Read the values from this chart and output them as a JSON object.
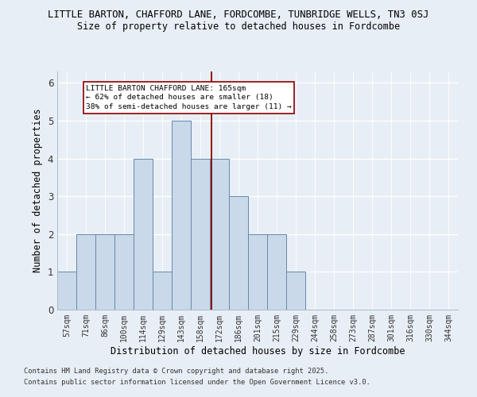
{
  "title": "LITTLE BARTON, CHAFFORD LANE, FORDCOMBE, TUNBRIDGE WELLS, TN3 0SJ",
  "subtitle": "Size of property relative to detached houses in Fordcombe",
  "xlabel": "Distribution of detached houses by size in Fordcombe",
  "ylabel": "Number of detached properties",
  "categories": [
    "57sqm",
    "71sqm",
    "86sqm",
    "100sqm",
    "114sqm",
    "129sqm",
    "143sqm",
    "158sqm",
    "172sqm",
    "186sqm",
    "201sqm",
    "215sqm",
    "229sqm",
    "244sqm",
    "258sqm",
    "273sqm",
    "287sqm",
    "301sqm",
    "316sqm",
    "330sqm",
    "344sqm"
  ],
  "values": [
    1,
    2,
    2,
    2,
    4,
    1,
    5,
    4,
    4,
    3,
    2,
    2,
    1,
    0,
    0,
    0,
    0,
    0,
    0,
    0,
    0
  ],
  "bar_color": "#c9d9ea",
  "bar_edge_color": "#6688aa",
  "redline_index": 7.57,
  "annotation_line1": "LITTLE BARTON CHAFFORD LANE: 165sqm",
  "annotation_line2": "← 62% of detached houses are smaller (18)",
  "annotation_line3": "38% of semi-detached houses are larger (11) →",
  "ylim": [
    0,
    6.3
  ],
  "yticks": [
    0,
    1,
    2,
    3,
    4,
    5,
    6
  ],
  "background_color": "#e8eef5",
  "grid_color": "#ffffff",
  "footnote1": "Contains HM Land Registry data © Crown copyright and database right 2025.",
  "footnote2": "Contains public sector information licensed under the Open Government Licence v3.0."
}
